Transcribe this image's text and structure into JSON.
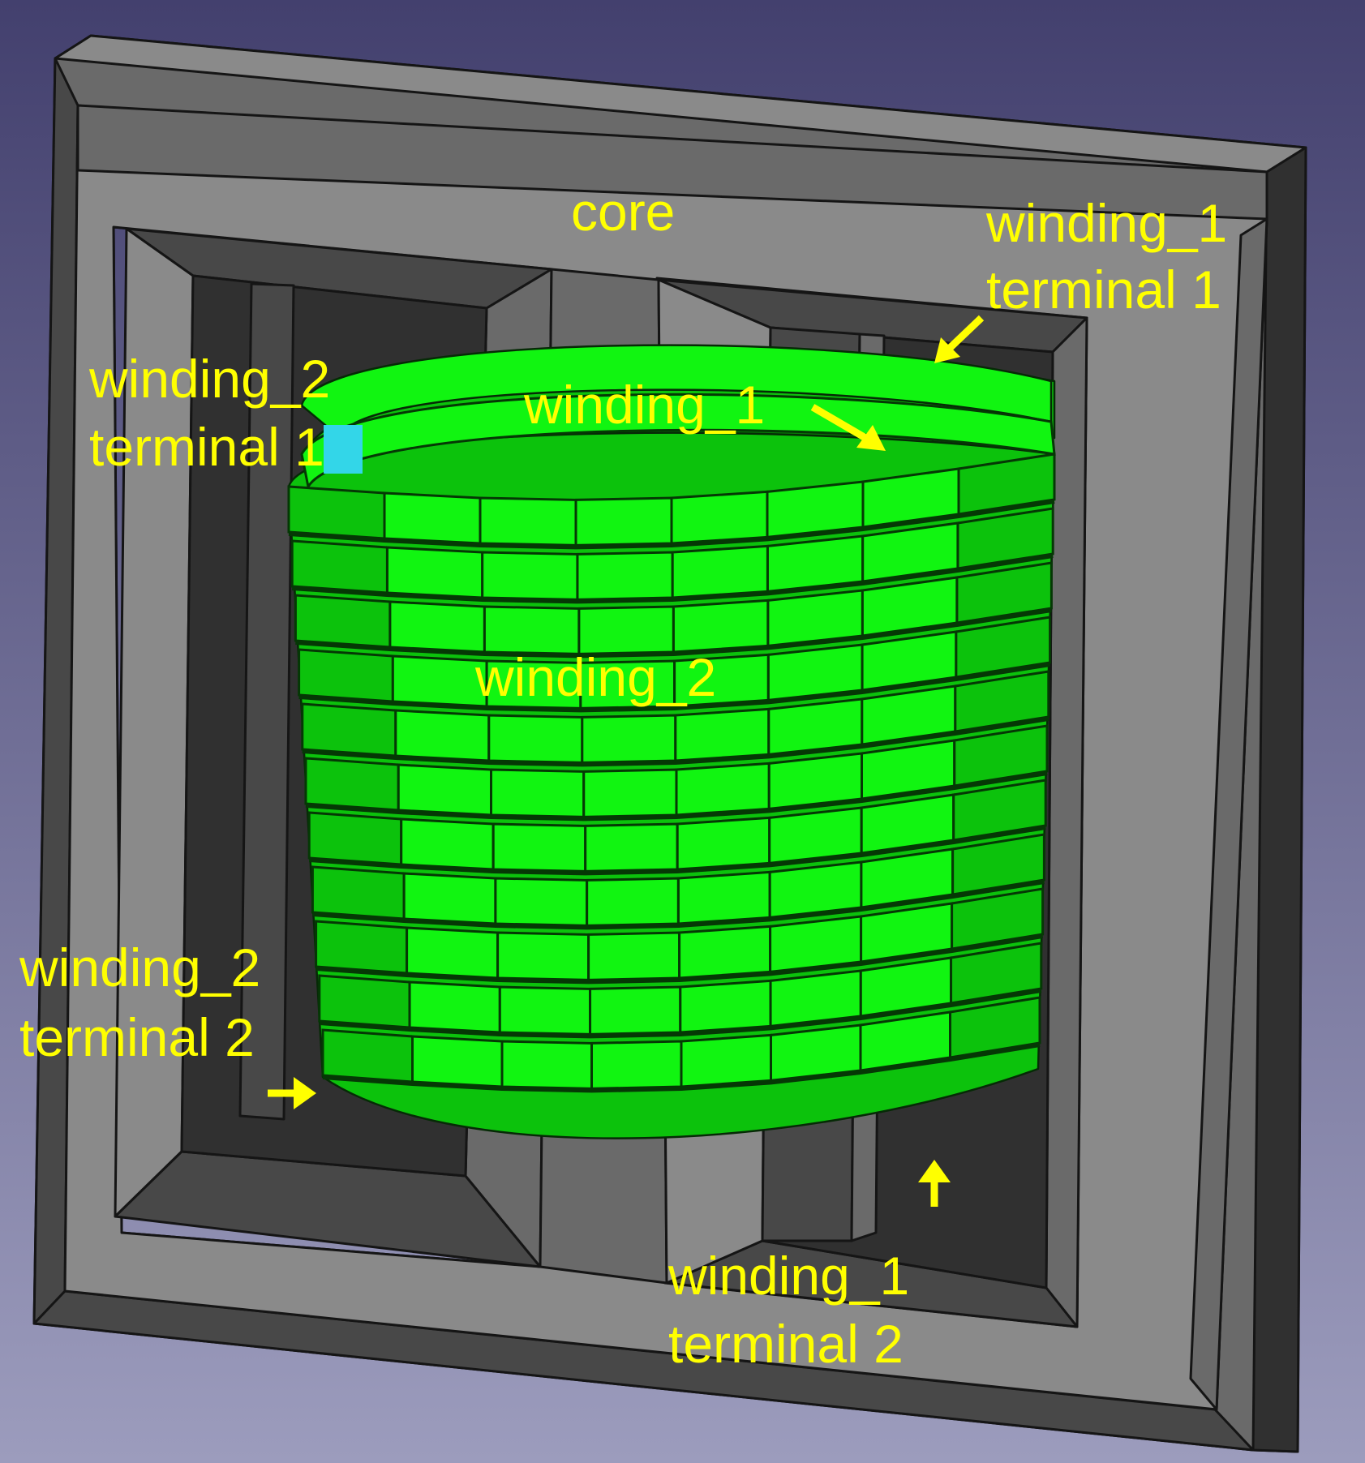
{
  "colors": {
    "background_top": "#43406e",
    "background_bottom": "#9c9cbd",
    "core_light": "#8a8a8a",
    "core_mid": "#6a6a6a",
    "core_dark": "#484848",
    "core_darkest": "#303030",
    "edge": "#151515",
    "winding_bright": "#11f511",
    "winding_mid": "#0cc20c",
    "winding_dark": "#077a07",
    "winding_gap": "#053805",
    "label": "#ffff00",
    "highlight": "#33d6e8"
  },
  "labels": {
    "core": "core",
    "winding_1": "winding_1",
    "winding_2": "winding_2",
    "w1_terminal_1_l1": "winding_1",
    "w1_terminal_1_l2": "terminal 1",
    "w2_terminal_1_l1": "winding_2",
    "w2_terminal_1_l2_prefix": "terminal ",
    "w2_terminal_1_l2_num": "1",
    "w2_terminal_2_l1": "winding_2",
    "w2_terminal_2_l2": "terminal 2",
    "w1_terminal_2_l1": "winding_1",
    "w1_terminal_2_l2": "terminal 2"
  }
}
